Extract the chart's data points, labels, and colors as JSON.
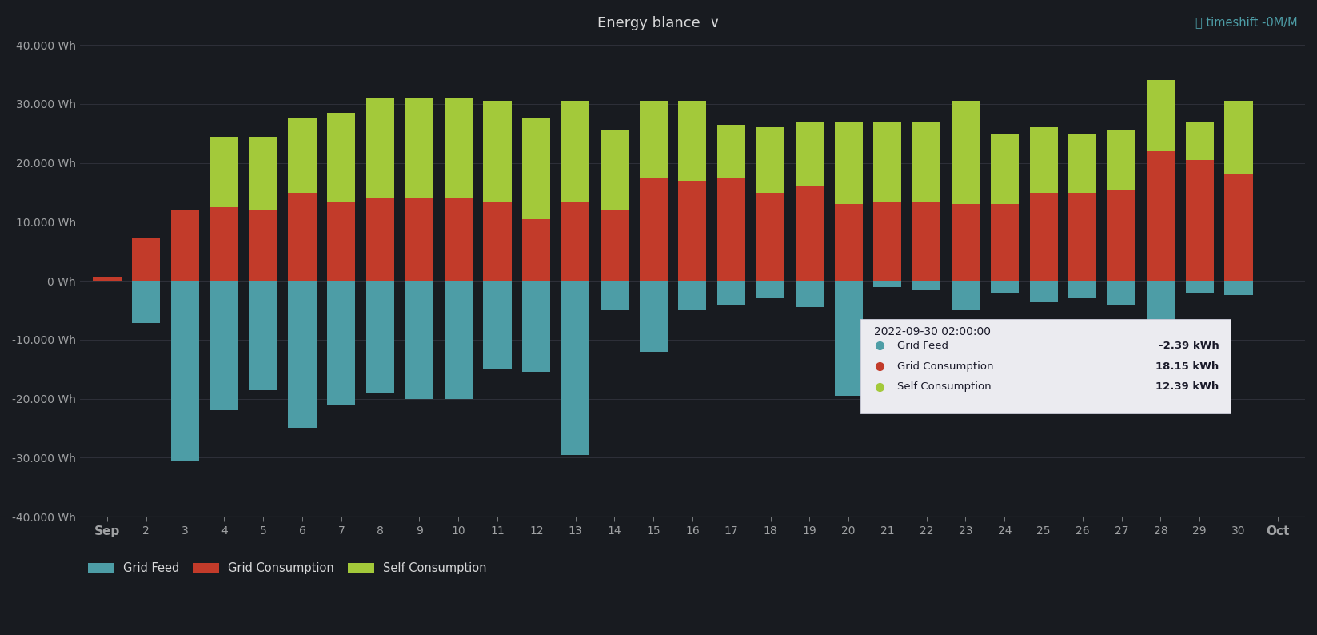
{
  "title": "Energy blance  ∨",
  "title_right": "⦾ timeshift -0M/M",
  "background_color": "#181b20",
  "plot_bg_color": "#181b20",
  "grid_color": "#2e3039",
  "text_color": "#d8d9da",
  "axis_label_color": "#9fa1a3",
  "grid_feed_color": "#4d9da6",
  "grid_consumption_color": "#c23b2a",
  "self_consumption_color": "#a3c93a",
  "days": [
    "Sep",
    "2",
    "3",
    "4",
    "5",
    "6",
    "7",
    "8",
    "9",
    "10",
    "11",
    "12",
    "13",
    "14",
    "15",
    "16",
    "17",
    "18",
    "19",
    "20",
    "21",
    "22",
    "23",
    "24",
    "25",
    "26",
    "27",
    "28",
    "29",
    "30",
    "Oct"
  ],
  "yticks": [
    -40000,
    -30000,
    -20000,
    -10000,
    0,
    10000,
    20000,
    30000,
    40000
  ],
  "ylabels": [
    "-40.000 Wh",
    "-30.000 Wh",
    "-20.000 Wh",
    "-10.000 Wh",
    "0 Wh",
    "10.000 Wh",
    "20.000 Wh",
    "30.000 Wh",
    "40.000 Wh"
  ],
  "grid_feed": [
    0,
    -7200,
    -30500,
    -22000,
    -18500,
    -25000,
    -21000,
    -19000,
    -20000,
    -20000,
    -15000,
    -15500,
    -29500,
    -5000,
    -12000,
    -5000,
    -4000,
    -3000,
    -4500,
    -19500,
    -1000,
    -1500,
    -5000,
    -2000,
    -3500,
    -3000,
    -4000,
    -10000,
    -2000,
    -2400,
    0
  ],
  "grid_consumption": [
    700,
    7200,
    12000,
    12500,
    12000,
    15000,
    13500,
    14000,
    14000,
    14000,
    13500,
    10500,
    13500,
    12000,
    17500,
    17000,
    17500,
    15000,
    16000,
    13000,
    13500,
    13500,
    13000,
    13000,
    15000,
    15000,
    15500,
    22000,
    20500,
    18150,
    0
  ],
  "self_consumption": [
    0,
    0,
    0,
    12000,
    12500,
    12500,
    15000,
    17000,
    17000,
    17000,
    17000,
    17000,
    17000,
    13500,
    13000,
    13500,
    9000,
    11000,
    11000,
    14000,
    13500,
    13500,
    17500,
    12000,
    11000,
    10000,
    10000,
    12000,
    6500,
    12390,
    0
  ],
  "tooltip_date": "2022-09-30 02:00:00",
  "tooltip_entries": [
    {
      "color": "#4d9da6",
      "label": "Grid Feed",
      "value": "-2.39 kWh"
    },
    {
      "color": "#c23b2a",
      "label": "Grid Consumption",
      "value": "18.15 kWh"
    },
    {
      "color": "#a3c93a",
      "label": "Self Consumption",
      "value": "12.39 kWh"
    }
  ]
}
